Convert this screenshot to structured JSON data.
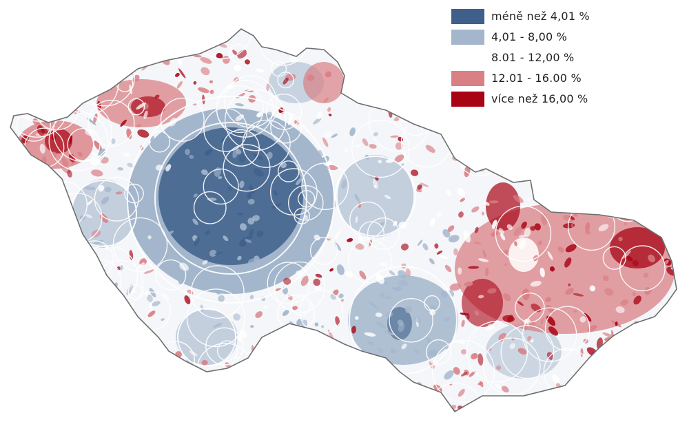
{
  "legend": {
    "items": [
      {
        "label": "méně než 4,01 %",
        "color": "#3f608a"
      },
      {
        "label": "4,01 - 8,00 %",
        "color": "#a3b6cc"
      },
      {
        "label": "8.01 - 12,00 %",
        "color": "#ffffff"
      },
      {
        "label": "12.01 - 16.00 %",
        "color": "#d98085"
      },
      {
        "label": "více než 16,00 %",
        "color": "#a80414"
      }
    ]
  },
  "colors": {
    "outline": "#6e6e6e",
    "darkblue": "#3f608a",
    "lightblue": "#a3b6cc",
    "pink": "#d98085",
    "red": "#a80414"
  }
}
